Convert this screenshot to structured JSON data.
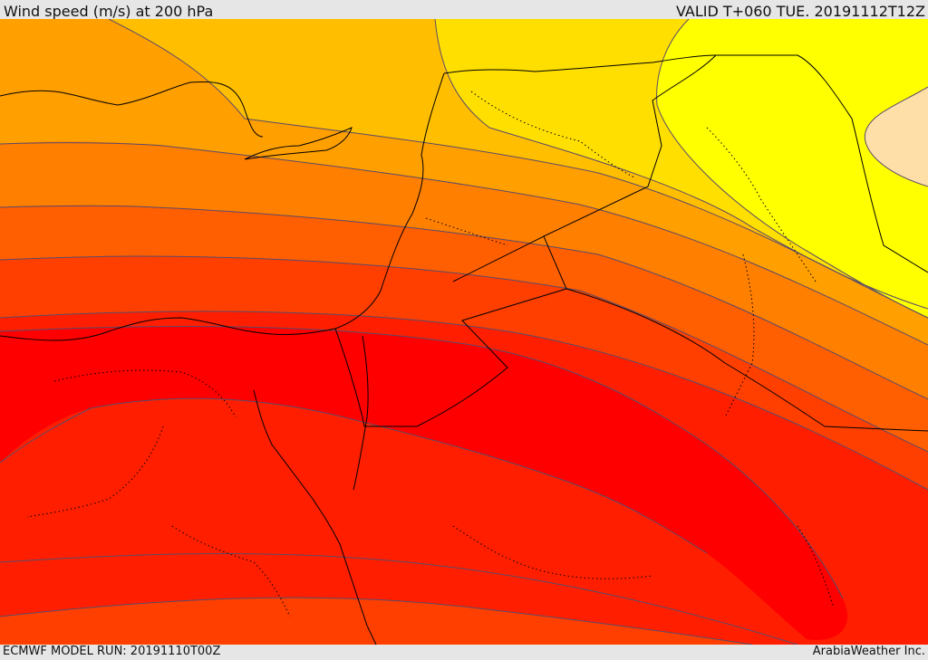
{
  "header": {
    "title": "Wind speed (m/s) at 200 hPa",
    "valid": "VALID T+060 TUE. 20191112T12Z"
  },
  "footer": {
    "model_run": "ECMWF MODEL RUN: 20191110T00Z",
    "credit": "ArabiaWeather Inc."
  },
  "map": {
    "field": "wind speed",
    "level": "200 hPa",
    "palette": {
      "band_1": "#ffdfa8",
      "band_2": "#ffff00",
      "band_3": "#ffdf00",
      "band_4": "#ffbf00",
      "band_5": "#ff9f00",
      "band_6": "#ff7f00",
      "band_7": "#ff5f00",
      "band_8": "#ff3f00",
      "band_9": "#ff1f00",
      "band_10": "#ff0000"
    },
    "contour_color": "#5a4a6a",
    "coastline_color": "#000000",
    "border_style": "dotted"
  }
}
